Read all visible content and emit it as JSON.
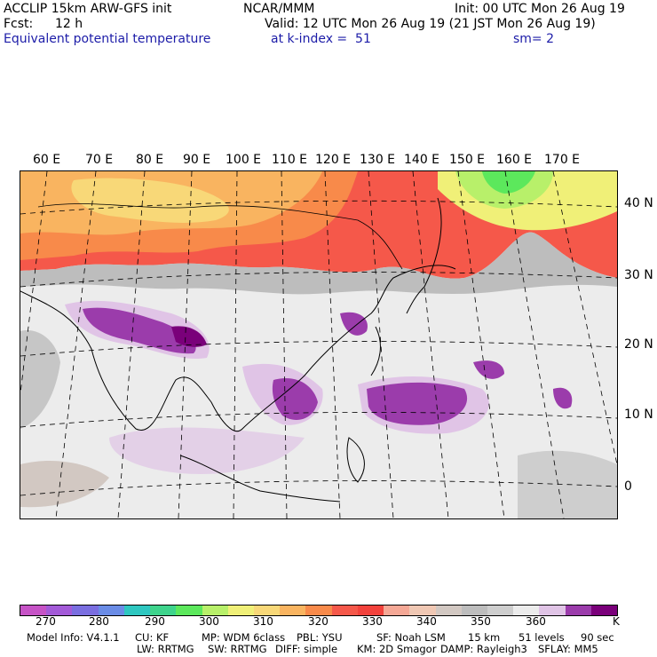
{
  "header": {
    "title_left": "ACCLIP 15km ARW-GFS init",
    "center": "NCAR/MMM",
    "init": "Init: 00 UTC Mon 26 Aug 19",
    "fcst_label": "Fcst:",
    "fcst_value": "12 h",
    "valid": "Valid: 12 UTC Mon 26 Aug 19 (21 JST Mon 26 Aug 19)",
    "field": "Equivalent potential temperature",
    "level": "at k-index =  51",
    "smoothing": "sm= 2"
  },
  "map": {
    "lon_labels": [
      "60 E",
      "70 E",
      "80 E",
      "90 E",
      "100 E",
      "110 E",
      "120 E",
      "130 E",
      "140 E",
      "150 E",
      "160 E",
      "170 E"
    ],
    "lat_labels": [
      "40 N",
      "30 N",
      "20 N",
      "10 N",
      "0"
    ]
  },
  "colorbar": {
    "colors": [
      "#c653c6",
      "#a35ad8",
      "#7a6ee0",
      "#6a8ce6",
      "#2ec7c0",
      "#3ed48c",
      "#5ce85c",
      "#b8f06a",
      "#f0f078",
      "#f8d878",
      "#f9b460",
      "#f88a4a",
      "#f5584a",
      "#f2423c",
      "#f5a896",
      "#f0c8b4",
      "#d2c8c2",
      "#bdbdbd",
      "#cecece",
      "#ececec",
      "#e0c4e6",
      "#9b3cab",
      "#7a007a"
    ],
    "tick_labels": [
      "270",
      "280",
      "290",
      "300",
      "310",
      "320",
      "330",
      "340",
      "350",
      "360"
    ],
    "unit": "K"
  },
  "footer": {
    "line1": [
      "Model Info: V4.1.1",
      "CU: KF",
      "MP: WDM 6class",
      "PBL: YSU",
      "SF: Noah LSM",
      "15 km",
      "51 levels",
      "90 sec"
    ],
    "line2": [
      "LW: RRTMG",
      "SW: RRTMG",
      "DIFF: simple",
      "KM: 2D Smagor",
      "DAMP: Rayleigh3",
      "SFLAY: MM5"
    ]
  }
}
